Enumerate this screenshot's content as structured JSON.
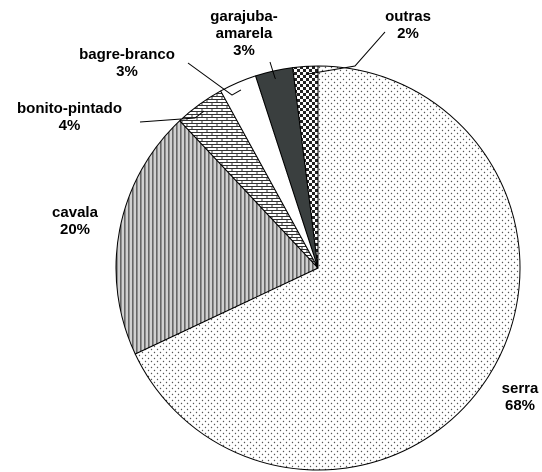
{
  "chart_data": {
    "type": "pie",
    "categories": [
      "serra",
      "cavala",
      "bonito-pintado",
      "bagre-branco",
      "garajuba-amarela",
      "outras"
    ],
    "values": [
      68,
      20,
      4,
      3,
      3,
      2
    ],
    "value_labels": [
      "68%",
      "20%",
      "4%",
      "3%",
      "3%",
      "2%"
    ]
  }
}
